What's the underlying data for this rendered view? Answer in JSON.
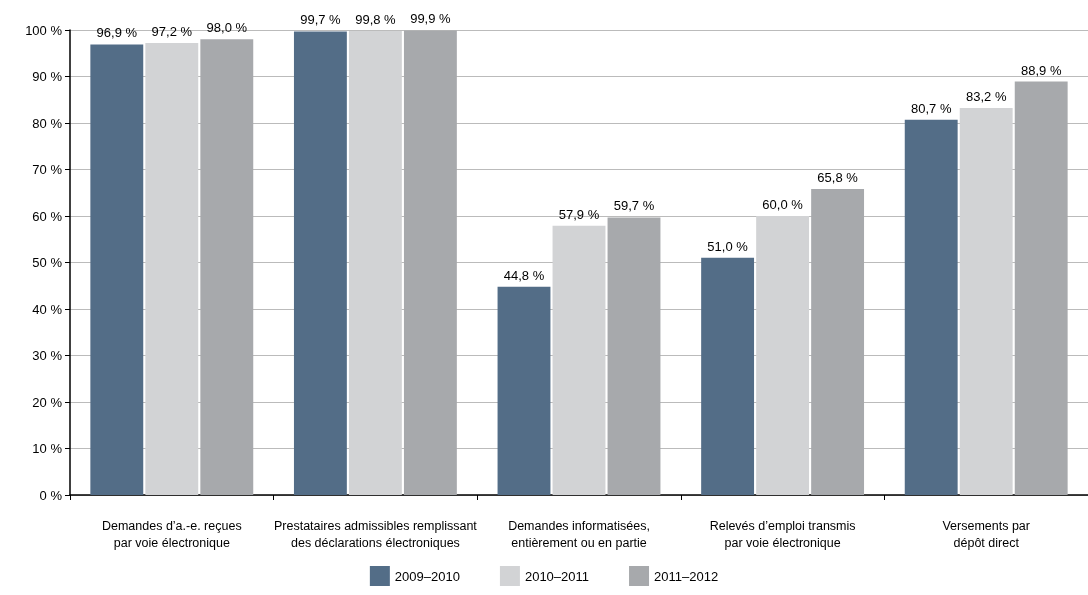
{
  "chart_data": {
    "type": "bar",
    "categories": [
      "Demandes d’a.-e. reçues\npar voie électronique",
      "Prestataires admissibles remplissant\ndes déclarations électroniques",
      "Demandes informatisées,\nentièrement ou en partie",
      "Relevés d’emploi transmis\npar voie électronique",
      "Versements par\ndépôt direct"
    ],
    "series": [
      {
        "name": "2009–2010",
        "color": "#536d87",
        "values": [
          96.9,
          99.7,
          44.8,
          51.0,
          80.7
        ],
        "value_labels": [
          "96,9 %",
          "99,7 %",
          "44,8 %",
          "51,0 %",
          "80,7 %"
        ]
      },
      {
        "name": "2010–2011",
        "color": "#d2d3d5",
        "values": [
          97.2,
          99.8,
          57.9,
          60.0,
          83.2
        ],
        "value_labels": [
          "97,2 %",
          "99,8 %",
          "57,9 %",
          "60,0 %",
          "83,2 %"
        ]
      },
      {
        "name": "2011–2012",
        "color": "#a7a9ac",
        "values": [
          98.0,
          99.9,
          59.7,
          65.8,
          88.9
        ],
        "value_labels": [
          "98,0 %",
          "99,9 %",
          "59,7 %",
          "65,8 %",
          "88,9 %"
        ]
      }
    ],
    "ylim": [
      0,
      100
    ],
    "yticks": [
      {
        "value": 0,
        "label": "0 %"
      },
      {
        "value": 10,
        "label": "10 %"
      },
      {
        "value": 20,
        "label": "20 %"
      },
      {
        "value": 30,
        "label": "30 %"
      },
      {
        "value": 40,
        "label": "40 %"
      },
      {
        "value": 50,
        "label": "50 %"
      },
      {
        "value": 60,
        "label": "60 %"
      },
      {
        "value": 70,
        "label": "70 %"
      },
      {
        "value": 80,
        "label": "80 %"
      },
      {
        "value": 90,
        "label": "90 %"
      },
      {
        "value": 100,
        "label": "100 %"
      }
    ],
    "grid": "y",
    "legend": "bottom"
  }
}
